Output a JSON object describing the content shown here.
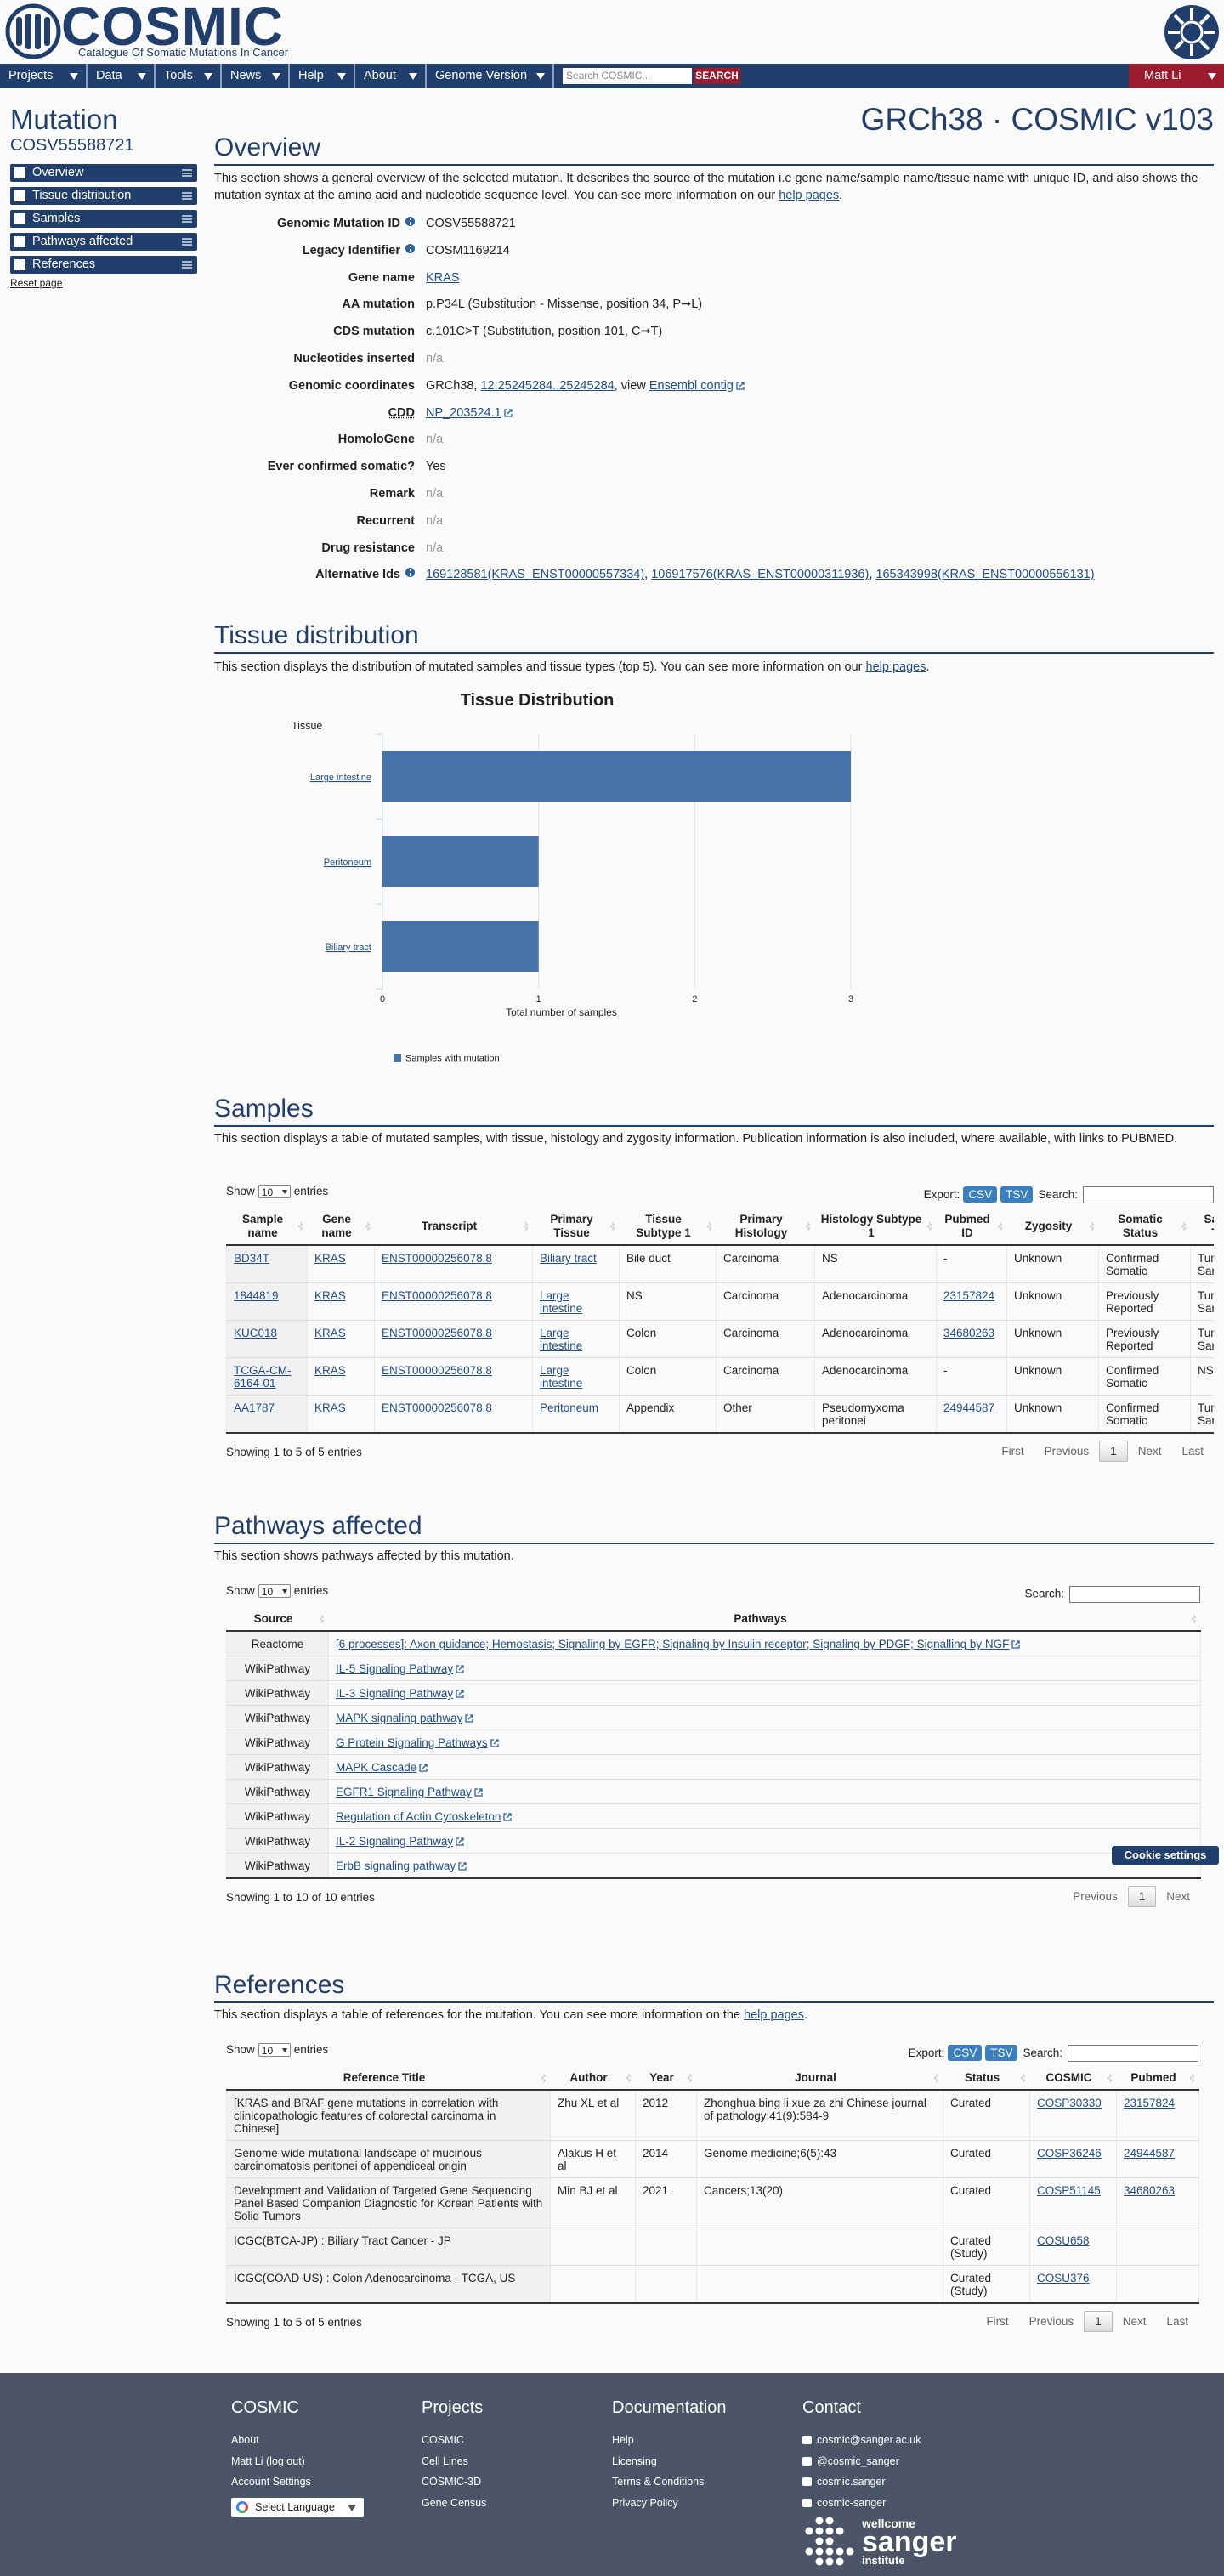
{
  "header": {
    "logo_title": "COSMIC",
    "logo_subtitle": "Catalogue Of Somatic Mutations In Cancer"
  },
  "nav": {
    "items": [
      "Projects",
      "Data",
      "Tools",
      "News",
      "Help",
      "About",
      "Genome Version"
    ],
    "search_placeholder": "Search COSMIC...",
    "search_button": "SEARCH",
    "user": "Matt Li"
  },
  "sidebar": {
    "title": "Mutation",
    "mutation_id": "COSV55588721",
    "menu": [
      "Overview",
      "Tissue distribution",
      "Samples",
      "Pathways affected",
      "References"
    ],
    "reset": "Reset page"
  },
  "release": "GRCh38 · COSMIC v103",
  "overview": {
    "heading": "Overview",
    "intro": [
      {
        "text": "This section shows a general overview of the selected mutation. It describes the source of the mutation i.e gene name/sample name/tissue name with unique ID, and also shows the mutation syntax at the amino acid and nucleotide sequence level. You can see more information on our "
      },
      {
        "link": "help pages"
      },
      {
        "text": "."
      }
    ],
    "fields": [
      {
        "label": "Genomic Mutation ID",
        "info": true,
        "value": [
          {
            "text": "COSV55588721"
          }
        ]
      },
      {
        "label": "Legacy Identifier",
        "info": true,
        "value": [
          {
            "text": "COSM1169214"
          }
        ]
      },
      {
        "label": "Gene name",
        "value": [
          {
            "link": "KRAS"
          }
        ]
      },
      {
        "label": "AA mutation",
        "value": [
          {
            "text": "p.P34L (Substitution - Missense, position 34, P➞L)"
          }
        ]
      },
      {
        "label": "CDS mutation",
        "value": [
          {
            "text": "c.101C>T (Substitution, position 101, C➞T)"
          }
        ]
      },
      {
        "label": "Nucleotides inserted",
        "value": [
          {
            "muted": "n/a"
          }
        ]
      },
      {
        "label": "Genomic coordinates",
        "value": [
          {
            "text": "GRCh38, "
          },
          {
            "link": "12:25245284..25245284"
          },
          {
            "text": ", view "
          },
          {
            "ext": "Ensembl contig"
          }
        ]
      },
      {
        "label": "CDD",
        "abbr": true,
        "value": [
          {
            "ext": "NP_203524.1"
          }
        ]
      },
      {
        "label": "HomoloGene",
        "value": [
          {
            "muted": "n/a"
          }
        ]
      },
      {
        "label": "Ever confirmed somatic?",
        "value": [
          {
            "text": "Yes"
          }
        ]
      },
      {
        "label": "Remark",
        "value": [
          {
            "muted": "n/a"
          }
        ]
      },
      {
        "label": "Recurrent",
        "value": [
          {
            "muted": "n/a"
          }
        ]
      },
      {
        "label": "Drug resistance",
        "value": [
          {
            "muted": "n/a"
          }
        ]
      },
      {
        "label": "Alternative Ids",
        "info": true,
        "value": [
          {
            "link": "169128581(KRAS_ENST00000557334)"
          },
          {
            "text": ", "
          },
          {
            "link": "106917576(KRAS_ENST00000311936)"
          },
          {
            "text": ", "
          },
          {
            "link": "165343998(KRAS_ENST00000556131)"
          }
        ]
      }
    ]
  },
  "tissue_distribution": {
    "heading": "Tissue distribution",
    "intro": [
      {
        "text": "This section displays the distribution of mutated samples and tissue types (top 5). You can see more information on our "
      },
      {
        "link": "help pages"
      },
      {
        "text": "."
      }
    ]
  },
  "chart_data": {
    "type": "bar",
    "orientation": "horizontal",
    "title": "Tissue Distribution",
    "y_label": "Tissue",
    "x_label": "Total number of samples",
    "categories": [
      "Large intestine",
      "Peritoneum",
      "Biliary tract"
    ],
    "series": [
      {
        "name": "Samples with mutation",
        "color": "#4572a7",
        "values": [
          3,
          1,
          1
        ]
      }
    ],
    "xlim": [
      0,
      3
    ],
    "xticks": [
      0,
      1,
      2,
      3
    ],
    "grid": true,
    "legend": "bottom-left"
  },
  "table_controls": {
    "show": "Show",
    "entries": "entries",
    "export": "Export:",
    "csv": "CSV",
    "tsv": "TSV",
    "search": "Search:",
    "first": "First",
    "previous": "Previous",
    "next": "Next",
    "last": "Last"
  },
  "samples": {
    "heading": "Samples",
    "intro": [
      {
        "text": "This section displays a table of mutated samples, with tissue, histology and zygosity information. Publication information is also included, where available, with links to PUBMED."
      }
    ],
    "table": {
      "columns": [
        "Sample name",
        "Gene name",
        "Transcript",
        "Primary Tissue",
        "Tissue Subtype 1",
        "Primary Histology",
        "Histology Subtype 1",
        "Pubmed ID",
        "Zygosity",
        "Somatic Status",
        "Sample Type"
      ],
      "rows": [
        [
          {
            "link": "BD34T"
          },
          {
            "link": "KRAS"
          },
          {
            "link": "ENST00000256078.8"
          },
          {
            "link": "Biliary tract"
          },
          "Bile duct",
          "Carcinoma",
          "NS",
          "-",
          "Unknown",
          "Confirmed Somatic",
          "Tumour Sample"
        ],
        [
          {
            "link": "1844819"
          },
          {
            "link": "KRAS"
          },
          {
            "link": "ENST00000256078.8"
          },
          {
            "link": "Large intestine"
          },
          "NS",
          "Carcinoma",
          "Adenocarcinoma",
          {
            "link": "23157824"
          },
          "Unknown",
          "Previously Reported",
          "Tumour Sample"
        ],
        [
          {
            "link": "KUC018"
          },
          {
            "link": "KRAS"
          },
          {
            "link": "ENST00000256078.8"
          },
          {
            "link": "Large intestine"
          },
          "Colon",
          "Carcinoma",
          "Adenocarcinoma",
          {
            "link": "34680263"
          },
          "Unknown",
          "Previously Reported",
          "Tumour Sample"
        ],
        [
          {
            "link": "TCGA-CM-6164-01"
          },
          {
            "link": "KRAS"
          },
          {
            "link": "ENST00000256078.8"
          },
          {
            "link": "Large intestine"
          },
          "Colon",
          "Carcinoma",
          "Adenocarcinoma",
          "-",
          "Unknown",
          "Confirmed Somatic",
          "NS"
        ],
        [
          {
            "link": "AA1787"
          },
          {
            "link": "KRAS"
          },
          {
            "link": "ENST00000256078.8"
          },
          {
            "link": "Peritoneum"
          },
          "Appendix",
          "Other",
          "Pseudomyxoma peritonei",
          {
            "link": "24944587"
          },
          "Unknown",
          "Confirmed Somatic",
          "Tumour Sample"
        ]
      ],
      "length": 10,
      "info": "Showing 1 to 5 of 5 entries",
      "page": 1,
      "export": true,
      "pager": [
        "first",
        "previous",
        "page",
        "next",
        "last"
      ]
    }
  },
  "pathways": {
    "heading": "Pathways affected",
    "intro": [
      {
        "text": "This section shows pathways affected by this mutation."
      }
    ],
    "table": {
      "columns": [
        "Source",
        "Pathways"
      ],
      "rows": [
        [
          "Reactome",
          {
            "ext": "[6 processes]: Axon guidance; Hemostasis; Signaling by EGFR; Signaling by Insulin receptor; Signaling by PDGF; Signalling by NGF"
          }
        ],
        [
          "WikiPathway",
          {
            "ext": "IL-5 Signaling Pathway"
          }
        ],
        [
          "WikiPathway",
          {
            "ext": "IL-3 Signaling Pathway"
          }
        ],
        [
          "WikiPathway",
          {
            "ext": "MAPK signaling pathway"
          }
        ],
        [
          "WikiPathway",
          {
            "ext": "G Protein Signaling Pathways"
          }
        ],
        [
          "WikiPathway",
          {
            "ext": "MAPK Cascade"
          }
        ],
        [
          "WikiPathway",
          {
            "ext": "EGFR1 Signaling Pathway"
          }
        ],
        [
          "WikiPathway",
          {
            "ext": "Regulation of Actin Cytoskeleton"
          }
        ],
        [
          "WikiPathway",
          {
            "ext": "IL-2 Signaling Pathway"
          }
        ],
        [
          "WikiPathway",
          {
            "ext": "ErbB signaling pathway"
          }
        ]
      ],
      "length": 10,
      "info": "Showing 1 to 10 of 10 entries",
      "page": 1,
      "export": false,
      "pager": [
        "previous",
        "page",
        "next"
      ]
    }
  },
  "cookie_button": "Cookie settings",
  "references": {
    "heading": "References",
    "intro": [
      {
        "text": "This section displays a table of references for the mutation. You can see more information on the "
      },
      {
        "link": "help pages"
      },
      {
        "text": "."
      }
    ],
    "table": {
      "columns": [
        "Reference Title",
        "Author",
        "Year",
        "Journal",
        "Status",
        "COSMIC",
        "Pubmed"
      ],
      "rows": [
        [
          "[KRAS and BRAF gene mutations in correlation with clinicopathologic features of colorectal carcinoma in Chinese]",
          "Zhu XL et al",
          2012,
          "Zhonghua bing li xue za zhi Chinese journal of pathology;41(9):584-9",
          "Curated",
          {
            "link": "COSP30330"
          },
          {
            "link": "23157824"
          }
        ],
        [
          "Genome-wide mutational landscape of mucinous carcinomatosis peritonei of appendiceal origin",
          "Alakus H et al",
          2014,
          "Genome medicine;6(5):43",
          "Curated",
          {
            "link": "COSP36246"
          },
          {
            "link": "24944587"
          }
        ],
        [
          "Development and Validation of Targeted Gene Sequencing Panel Based Companion Diagnostic for Korean Patients with Solid Tumors",
          "Min BJ et al",
          2021,
          "Cancers;13(20)",
          "Curated",
          {
            "link": "COSP51145"
          },
          {
            "link": "34680263"
          }
        ],
        [
          "ICGC(BTCA-JP) : Biliary Tract Cancer - JP",
          null,
          null,
          null,
          "Curated (Study)",
          {
            "link": "COSU658"
          },
          null
        ],
        [
          "ICGC(COAD-US) : Colon Adenocarcinoma - TCGA, US",
          null,
          null,
          null,
          "Curated (Study)",
          {
            "link": "COSU376"
          },
          null
        ]
      ],
      "length": 10,
      "info": "Showing 1 to 5 of 5 entries",
      "page": 1,
      "export": true,
      "pager": [
        "first",
        "previous",
        "page",
        "next",
        "last"
      ]
    }
  },
  "footer": {
    "columns": [
      {
        "heading": "COSMIC",
        "links": [
          "About",
          "Matt Li (log out)",
          "Account Settings"
        ]
      },
      {
        "heading": "Projects",
        "links": [
          "COSMIC",
          "Cell Lines",
          "COSMIC-3D",
          "Gene Census"
        ]
      },
      {
        "heading": "Documentation",
        "links": [
          "Help",
          "Licensing",
          "Terms & Conditions",
          "Privacy Policy"
        ]
      },
      {
        "heading": "Contact",
        "links": [
          "cosmic@sanger.ac.uk",
          "@cosmic_sanger",
          "cosmic.sanger",
          "cosmic-sanger"
        ]
      }
    ],
    "language": "Select Language",
    "sanger": [
      "wellcome",
      "sanger",
      "institute"
    ]
  }
}
